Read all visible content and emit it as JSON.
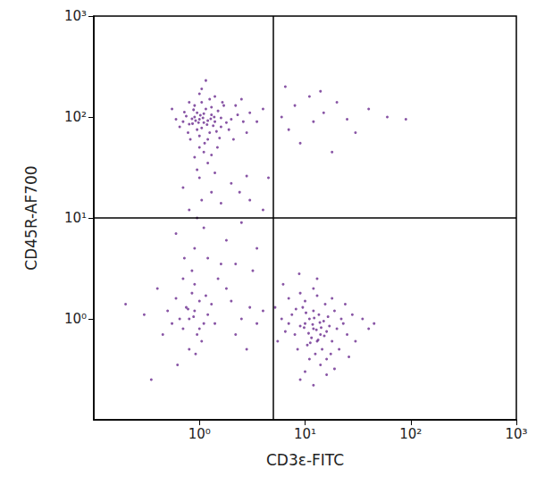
{
  "chart_data": {
    "type": "scatter",
    "x_label": "CD3ε-FITC",
    "y_label": "CD45R-AF700",
    "log": true,
    "grid": false,
    "color": "#6a2a8f",
    "marker": "circle",
    "xlim": [
      0.1,
      1000
    ],
    "ylim": [
      0.1,
      1000
    ],
    "xticks": [
      {
        "value": 1,
        "label": "10⁰"
      },
      {
        "value": 10,
        "label": "10¹"
      },
      {
        "value": 100,
        "label": "10²"
      },
      {
        "value": 1000,
        "label": "10³"
      }
    ],
    "yticks": [
      {
        "value": 1,
        "label": "10⁰"
      },
      {
        "value": 10,
        "label": "10¹"
      },
      {
        "value": 100,
        "label": "10²"
      },
      {
        "value": 1000,
        "label": "10³"
      }
    ],
    "quadrant": {
      "x": 5,
      "y": 10
    },
    "x": [
      1.0,
      1.1,
      0.9,
      1.2,
      0.8,
      1.3,
      1.05,
      0.95,
      1.4,
      0.85,
      1.15,
      1.25,
      0.75,
      1.6,
      1.0,
      0.9,
      1.35,
      1.1,
      0.7,
      1.8,
      1.2,
      1.5,
      0.95,
      1.05,
      2.0,
      0.65,
      1.3,
      1.45,
      0.88,
      1.12,
      2.3,
      1.7,
      0.8,
      1.0,
      1.9,
      1.25,
      0.72,
      2.6,
      1.55,
      0.98,
      1.08,
      1.18,
      0.92,
      1.02,
      1.28,
      0.86,
      1.38,
      1.6,
      1.1,
      0.9,
      1.4,
      1.0,
      2.2,
      3.0,
      0.6,
      1.2,
      0.82,
      1.65,
      2.8,
      1.05,
      0.78,
      1.48,
      2.1,
      1.3,
      0.95,
      3.5,
      4.0,
      1.15,
      0.55,
      2.5,
      6,
      8,
      12,
      15,
      20,
      7,
      25,
      9,
      40,
      30,
      11,
      60,
      90,
      18,
      6.5,
      14,
      1.0,
      1.3,
      0.8,
      2.0,
      1.1,
      1.6,
      0.9,
      2.5,
      1.2,
      3.0,
      0.7,
      1.8,
      2.2,
      1.4,
      0.85,
      2.8,
      4,
      3.5,
      1.05,
      0.6,
      2.4,
      4.5,
      1.5,
      0.95,
      3.2,
      0.9,
      0.8,
      1.0,
      0.7,
      1.1,
      0.85,
      0.95,
      0.75,
      1.2,
      0.6,
      0.9,
      1.05,
      0.65,
      0.8,
      1.3,
      0.55,
      0.7,
      1.0,
      0.88,
      0.78,
      1.15,
      0.5,
      0.45,
      1.4,
      0.92,
      2.0,
      2.5,
      3.0,
      2.2,
      1.8,
      3.5,
      4.0,
      0.4,
      0.35,
      0.62,
      0.3,
      1.6,
      0.72,
      0.2,
      2.8,
      12,
      10,
      14,
      11,
      13,
      9,
      15,
      16,
      8,
      12,
      10.5,
      13.5,
      11.5,
      17,
      7,
      18,
      9.5,
      14.5,
      12.5,
      20,
      6.5,
      10,
      15.5,
      8.5,
      22,
      11,
      13,
      19,
      7.5,
      16,
      25,
      6,
      12,
      9,
      14,
      18,
      10,
      28,
      5.5,
      21,
      11.8,
      12.8,
      10.8,
      13.8,
      9.8,
      15.2,
      12.2,
      11.2,
      14.2,
      16.5,
      8.2,
      17.5,
      23,
      30,
      35,
      40,
      6.2,
      13,
      9,
      16,
      12,
      19,
      24,
      7,
      10.2,
      13.3,
      45,
      5.2,
      8.8,
      26
    ],
    "values": [
      95,
      88,
      100,
      92,
      85,
      105,
      78,
      110,
      90,
      96,
      120,
      70,
      102,
      98,
      65,
      130,
      82,
      108,
      90,
      88,
      60,
      115,
      75,
      140,
      95,
      80,
      125,
      72,
      118,
      55,
      105,
      130,
      140,
      50,
      75,
      150,
      112,
      90,
      62,
      88,
      98,
      84,
      92,
      104,
      96,
      86,
      100,
      80,
      45,
      40,
      160,
      170,
      130,
      110,
      95,
      35,
      60,
      140,
      70,
      190,
      70,
      50,
      60,
      42,
      30,
      90,
      120,
      230,
      120,
      150,
      100,
      130,
      90,
      110,
      140,
      75,
      95,
      55,
      120,
      70,
      160,
      100,
      95,
      45,
      200,
      180,
      25,
      18,
      12,
      22,
      8,
      14,
      5,
      9,
      4,
      15,
      20,
      6,
      3.5,
      28,
      3,
      26,
      12,
      5,
      15,
      7,
      18,
      25,
      2.5,
      10,
      3,
      1.2,
      1.0,
      1.5,
      0.8,
      0.9,
      1.8,
      0.7,
      1.3,
      1.1,
      1.6,
      2.2,
      0.6,
      1.0,
      0.5,
      1.4,
      0.9,
      2.5,
      0.8,
      1.05,
      1.25,
      1.7,
      1.2,
      0.7,
      0.9,
      0.45,
      1.5,
      1.0,
      1.3,
      0.7,
      2.0,
      0.9,
      1.2,
      2.0,
      0.25,
      0.35,
      1.1,
      3.5,
      4,
      1.4,
      0.5,
      0.8,
      0.9,
      0.7,
      1.0,
      0.6,
      0.85,
      0.95,
      0.75,
      0.7,
      1.2,
      0.55,
      1.1,
      0.65,
      0.85,
      0.9,
      0.6,
      1.3,
      0.5,
      0.45,
      0.8,
      0.75,
      1.5,
      1.4,
      0.5,
      1.0,
      0.4,
      1.7,
      1.2,
      1.1,
      0.4,
      0.7,
      1.0,
      2.0,
      1.8,
      0.35,
      1.6,
      0.3,
      1.1,
      0.6,
      0.5,
      0.88,
      0.78,
      0.72,
      0.92,
      0.82,
      0.68,
      1.02,
      0.58,
      0.82,
      1.05,
      1.25,
      0.45,
      0.9,
      0.6,
      1.0,
      0.8,
      2.2,
      2.5,
      0.25,
      0.28,
      0.22,
      0.32,
      1.4,
      1.6,
      1.15,
      0.62,
      0.9,
      1.3,
      2.8,
      0.42
    ]
  }
}
